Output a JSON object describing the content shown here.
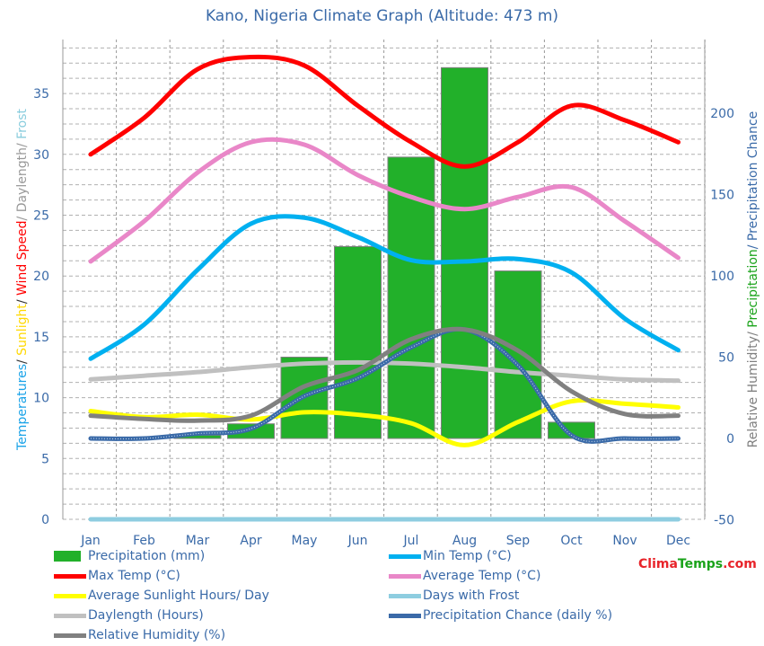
{
  "title": "Kano, Nigeria Climate Graph (Altitude: 473 m)",
  "brand": {
    "part1": "Clima",
    "part2": "Temps",
    "part3": ".com"
  },
  "left_axis_label": [
    {
      "text": "Temperatures",
      "color": "#1aa3e8"
    },
    {
      "text": "/ ",
      "color": "#333"
    },
    {
      "text": "Sunlight",
      "color": "#ffd800"
    },
    {
      "text": "/ ",
      "color": "#333"
    },
    {
      "text": "Wind Speed",
      "color": "#ff0000"
    },
    {
      "text": "/ Daylength/ ",
      "color": "#999999"
    },
    {
      "text": "Frost",
      "color": "#88ccdd"
    }
  ],
  "right_axis_label": [
    {
      "text": "Relative Humidity/ ",
      "color": "#808080"
    },
    {
      "text": "Precipitation",
      "color": "#1aa31a"
    },
    {
      "text": "/ Precipitation Chance",
      "color": "#3a6aa8"
    }
  ],
  "chart_data": {
    "type": "bar+line",
    "categories": [
      "Jan",
      "Feb",
      "Mar",
      "Apr",
      "May",
      "Jun",
      "Jul",
      "Aug",
      "Sep",
      "Oct",
      "Nov",
      "Dec"
    ],
    "left_axis": {
      "ylim": [
        0,
        37.5
      ],
      "ticks": [
        "0",
        "5",
        "10",
        "15",
        "20",
        "25",
        "30",
        "35"
      ]
    },
    "right_axis": {
      "ylim": [
        -50,
        235
      ],
      "ticks": [
        "-50",
        "0",
        "50",
        "100",
        "150",
        "200"
      ]
    },
    "grid": true,
    "legend_placement": "bottom",
    "series": [
      {
        "name": "Precipitation (mm)",
        "type": "bar",
        "axis": "right",
        "color": "#22b02a",
        "values": [
          0,
          0,
          2,
          9,
          50,
          118,
          173,
          228,
          103,
          10,
          0,
          0
        ]
      },
      {
        "name": "Min Temp (°C)",
        "type": "line",
        "axis": "left",
        "color": "#00b0f0",
        "values": [
          13.2,
          16,
          20.5,
          24.3,
          24.8,
          23.2,
          21.3,
          21.2,
          21.4,
          20.3,
          16.5,
          13.9
        ]
      },
      {
        "name": "Max Temp (°C)",
        "type": "line",
        "axis": "left",
        "color": "#ff0000",
        "values": [
          30,
          33,
          37,
          38,
          37.3,
          34,
          31,
          29,
          31,
          34,
          32.8,
          31
        ]
      },
      {
        "name": "Average Temp (°C)",
        "type": "line",
        "axis": "left",
        "color": "#e987c8",
        "values": [
          21.2,
          24.5,
          28.5,
          31,
          30.8,
          28.3,
          26.5,
          25.5,
          26.5,
          27.3,
          24.5,
          21.5
        ]
      },
      {
        "name": "Average Sunlight Hours/ Day",
        "type": "line",
        "axis": "left",
        "color": "#ffff00",
        "values": [
          8.9,
          8.4,
          8.6,
          8.2,
          8.8,
          8.6,
          7.9,
          6.1,
          8,
          9.7,
          9.5,
          9.2
        ]
      },
      {
        "name": "Days with Frost",
        "type": "line",
        "axis": "left",
        "color": "#8ecde0",
        "values": [
          0,
          0,
          0,
          0,
          0,
          0,
          0,
          0,
          0,
          0,
          0,
          0
        ]
      },
      {
        "name": "Daylength (Hours)",
        "type": "line",
        "axis": "left",
        "color": "#c0c0c0",
        "values": [
          11.5,
          11.8,
          12.1,
          12.5,
          12.8,
          12.9,
          12.8,
          12.5,
          12.1,
          11.8,
          11.5,
          11.4
        ]
      },
      {
        "name": "Precipitation Chance (daily %)",
        "type": "line",
        "axis": "right",
        "color": "#3a6aa8",
        "values": [
          0,
          0,
          3,
          6,
          26,
          37,
          56,
          67,
          45,
          2,
          0,
          0
        ]
      },
      {
        "name": "Relative Humidity (%)",
        "type": "line",
        "axis": "right",
        "color": "#808080",
        "values": [
          14,
          12,
          11,
          14,
          32,
          42,
          61,
          67,
          54,
          29,
          15,
          14
        ]
      }
    ]
  }
}
